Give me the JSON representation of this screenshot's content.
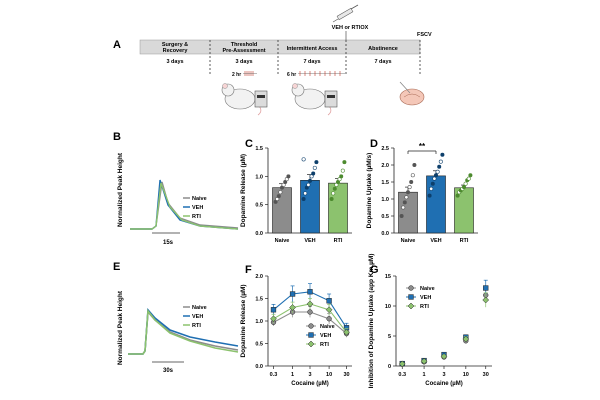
{
  "panel_labels": {
    "A": "A",
    "B": "B",
    "C": "C",
    "D": "D",
    "E": "E",
    "F": "F",
    "G": "G"
  },
  "timeline": {
    "phases": [
      {
        "name": "Surgery &",
        "name2": "Recovery",
        "days": "3 days"
      },
      {
        "name": "Threshold",
        "name2": "Pre-Assessment",
        "days": "3 days"
      },
      {
        "name": "Intermittent Access",
        "name2": "",
        "days": "7 days"
      },
      {
        "name": "Abstinence",
        "name2": "",
        "days": "7 days"
      }
    ],
    "injection_label": "VEH or RTIOX",
    "fscv_label": "FSCV",
    "threshold_session": "2 hr",
    "ia_session": "6 hr"
  },
  "colors": {
    "naive": "#8c8c8c",
    "veh": "#1f6fb2",
    "rti": "#8cc26e",
    "naive_dark": "#555555",
    "veh_dark": "#0d3f6b",
    "rti_dark": "#4c8a2e"
  },
  "legend": [
    "Naive",
    "VEH",
    "RTI"
  ],
  "panel_B": {
    "ylabel": "Normalized Peak Height",
    "time": "15s"
  },
  "panel_E": {
    "ylabel": "Normalized Peak Height",
    "time": "30s"
  },
  "chart_data": [
    {
      "id": "C",
      "type": "bar",
      "ylabel": "Dopamine Release (µM)",
      "categories": [
        "Naive",
        "VEH",
        "RTI"
      ],
      "values": [
        0.8,
        0.93,
        0.88
      ],
      "errors": [
        0.07,
        0.1,
        0.08
      ],
      "ylim": [
        0,
        1.5
      ],
      "yticks": [
        0.0,
        0.5,
        1.0,
        1.5
      ],
      "points": [
        [
          0.55,
          0.6,
          0.65,
          0.72,
          0.8,
          0.85,
          0.9,
          0.95,
          1.0
        ],
        [
          0.6,
          0.7,
          0.8,
          0.85,
          0.92,
          1.0,
          1.05,
          1.15,
          1.25,
          1.3
        ],
        [
          0.6,
          0.7,
          0.78,
          0.85,
          0.9,
          0.95,
          1.0,
          1.1,
          1.25
        ]
      ]
    },
    {
      "id": "D",
      "type": "bar",
      "ylabel": "Dopamine Uptake (µM/s)",
      "categories": [
        "Naive",
        "VEH",
        "RTI"
      ],
      "values": [
        1.2,
        1.68,
        1.33
      ],
      "errors": [
        0.15,
        0.15,
        0.08
      ],
      "ylim": [
        0,
        2.5
      ],
      "yticks": [
        0.0,
        0.5,
        1.0,
        1.5,
        2.0,
        2.5
      ],
      "significance": "**",
      "points": [
        [
          0.5,
          0.75,
          0.9,
          1.05,
          1.2,
          1.35,
          1.5,
          1.7,
          2.0
        ],
        [
          1.1,
          1.3,
          1.45,
          1.6,
          1.7,
          1.8,
          1.95,
          2.1,
          2.3
        ],
        [
          1.1,
          1.2,
          1.25,
          1.3,
          1.35,
          1.45,
          1.55,
          1.6,
          1.7
        ]
      ]
    },
    {
      "id": "F",
      "type": "line",
      "xlabel": "Cocaine (µM)",
      "ylabel": "Dopamine Release (µM)",
      "x": [
        0.3,
        1,
        3,
        10,
        30
      ],
      "xticks": [
        "0.3",
        "1",
        "3",
        "10",
        "30"
      ],
      "ylim": [
        0,
        2.0
      ],
      "yticks": [
        0.0,
        0.5,
        1.0,
        1.5,
        2.0
      ],
      "series": [
        {
          "name": "Naive",
          "values": [
            0.97,
            1.2,
            1.2,
            1.05,
            0.72
          ],
          "errors": [
            0.08,
            0.12,
            0.12,
            0.12,
            0.08
          ]
        },
        {
          "name": "VEH",
          "values": [
            1.25,
            1.6,
            1.65,
            1.45,
            0.85
          ],
          "errors": [
            0.12,
            0.18,
            0.18,
            0.15,
            0.1
          ]
        },
        {
          "name": "RTI",
          "values": [
            1.05,
            1.3,
            1.38,
            1.25,
            0.75
          ],
          "errors": [
            0.1,
            0.12,
            0.12,
            0.12,
            0.08
          ]
        }
      ]
    },
    {
      "id": "G",
      "type": "line",
      "xlabel": "Cocaine (µM)",
      "ylabel": "Inhibition of Dopamine Uptake (app Km,µM)",
      "x": [
        0.3,
        1,
        3,
        10,
        30
      ],
      "xticks": [
        "0.3",
        "1",
        "3",
        "10",
        "30"
      ],
      "ylim": [
        0,
        15
      ],
      "yticks": [
        0,
        5,
        10,
        15
      ],
      "series": [
        {
          "name": "Naive",
          "values": [
            0.3,
            0.7,
            1.5,
            4.2,
            11.8
          ],
          "errors": [
            0.1,
            0.1,
            0.2,
            0.4,
            1.2
          ]
        },
        {
          "name": "VEH",
          "values": [
            0.4,
            0.9,
            1.9,
            4.8,
            13.0
          ],
          "errors": [
            0.1,
            0.1,
            0.2,
            0.4,
            1.3
          ]
        },
        {
          "name": "RTI",
          "values": [
            0.35,
            0.8,
            1.6,
            4.5,
            11.0
          ],
          "errors": [
            0.1,
            0.1,
            0.2,
            0.4,
            1.2
          ]
        }
      ]
    }
  ]
}
